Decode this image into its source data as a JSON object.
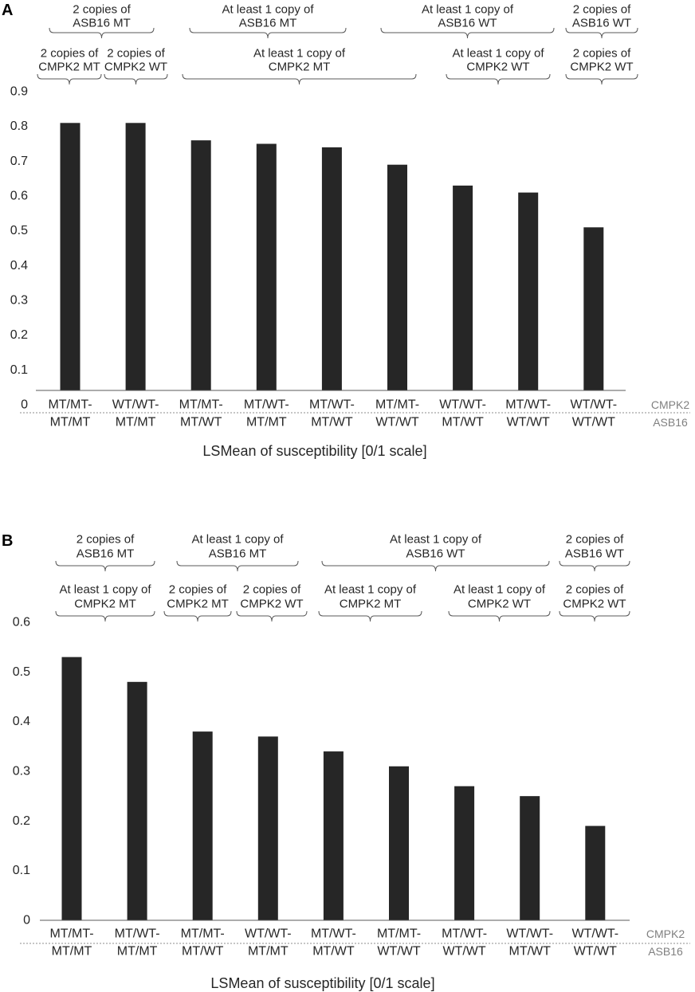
{
  "chart_data": [
    {
      "panel": "A",
      "type": "bar",
      "title": "",
      "xlabel": "LSMean of susceptibility [0/1 scale]",
      "ylabel": "",
      "ylim": [
        0,
        0.9
      ],
      "yticks": [
        "0",
        "0.1",
        "0.2",
        "0.3",
        "0.4",
        "0.5",
        "0.6",
        "0.7",
        "0.8",
        "0.9"
      ],
      "row_labels": {
        "cmpk2": "CMPK2",
        "asb16": "ASB16"
      },
      "categories": [
        {
          "cmpk2": "MT/MT-",
          "asb16": "MT/MT"
        },
        {
          "cmpk2": "WT/WT-",
          "asb16": "MT/MT"
        },
        {
          "cmpk2": "MT/MT-",
          "asb16": "MT/WT"
        },
        {
          "cmpk2": "MT/WT-",
          "asb16": "MT/MT"
        },
        {
          "cmpk2": "MT/WT-",
          "asb16": "MT/WT"
        },
        {
          "cmpk2": "MT/MT-",
          "asb16": "WT/WT"
        },
        {
          "cmpk2": "WT/WT-",
          "asb16": "MT/WT"
        },
        {
          "cmpk2": "MT/WT-",
          "asb16": "WT/WT"
        },
        {
          "cmpk2": "WT/WT-",
          "asb16": "WT/WT"
        }
      ],
      "values": [
        0.81,
        0.81,
        0.76,
        0.75,
        0.74,
        0.69,
        0.63,
        0.61,
        0.51
      ],
      "bar_color": "#262626",
      "asb16_groups": [
        {
          "lines": [
            "2 copies of",
            "ASB16 MT"
          ]
        },
        {
          "lines": [
            "At least 1 copy of",
            "ASB16 MT"
          ]
        },
        {
          "lines": [
            "At least 1 copy of",
            "ASB16 WT"
          ]
        },
        {
          "lines": [
            "2 copies of",
            "ASB16 WT"
          ]
        }
      ],
      "cmpk2_groups": [
        {
          "lines": [
            "2 copies of",
            "CMPK2 MT"
          ]
        },
        {
          "lines": [
            "2 copies of",
            "CMPK2 WT"
          ]
        },
        {
          "lines": [
            "At least 1 copy of",
            "CMPK2 MT"
          ]
        },
        {
          "lines": [
            "At least 1 copy of",
            "CMPK2 WT"
          ]
        },
        {
          "lines": [
            "2 copies of",
            "CMPK2 WT"
          ]
        }
      ]
    },
    {
      "panel": "B",
      "type": "bar",
      "title": "",
      "xlabel": "LSMean of susceptibility [0/1 scale]",
      "ylabel": "",
      "ylim": [
        0,
        0.6
      ],
      "yticks": [
        "0",
        "0.1",
        "0.2",
        "0.3",
        "0.4",
        "0.5",
        "0.6"
      ],
      "row_labels": {
        "cmpk2": "CMPK2",
        "asb16": "ASB16"
      },
      "categories": [
        {
          "cmpk2": "MT/MT-",
          "asb16": "MT/MT"
        },
        {
          "cmpk2": "MT/WT-",
          "asb16": "MT/MT"
        },
        {
          "cmpk2": "MT/MT-",
          "asb16": "MT/WT"
        },
        {
          "cmpk2": "WT/WT-",
          "asb16": "MT/MT"
        },
        {
          "cmpk2": "MT/WT-",
          "asb16": "MT/WT"
        },
        {
          "cmpk2": "MT/MT-",
          "asb16": "WT/WT"
        },
        {
          "cmpk2": "MT/WT-",
          "asb16": "WT/WT"
        },
        {
          "cmpk2": "WT/WT-",
          "asb16": "MT/WT"
        },
        {
          "cmpk2": "WT/WT-",
          "asb16": "WT/WT"
        }
      ],
      "values": [
        0.53,
        0.48,
        0.38,
        0.37,
        0.34,
        0.31,
        0.27,
        0.25,
        0.19
      ],
      "bar_color": "#262626",
      "asb16_groups": [
        {
          "lines": [
            "2 copies of",
            "ASB16 MT"
          ]
        },
        {
          "lines": [
            "At least 1 copy of",
            "ASB16 MT"
          ]
        },
        {
          "lines": [
            "At least 1 copy of",
            "ASB16 WT"
          ]
        },
        {
          "lines": [
            "2 copies of",
            "ASB16 WT"
          ]
        }
      ],
      "cmpk2_groups": [
        {
          "lines": [
            "At least 1 copy of",
            "CMPK2 MT"
          ]
        },
        {
          "lines": [
            "2 copies of",
            "CMPK2 MT"
          ]
        },
        {
          "lines": [
            "2 copies of",
            "CMPK2 WT"
          ]
        },
        {
          "lines": [
            "At least 1 copy of",
            "CMPK2 MT"
          ]
        },
        {
          "lines": [
            "At least 1 copy of",
            "CMPK2 WT"
          ]
        },
        {
          "lines": [
            "2 copies of",
            "CMPK2 WT"
          ]
        }
      ]
    }
  ]
}
